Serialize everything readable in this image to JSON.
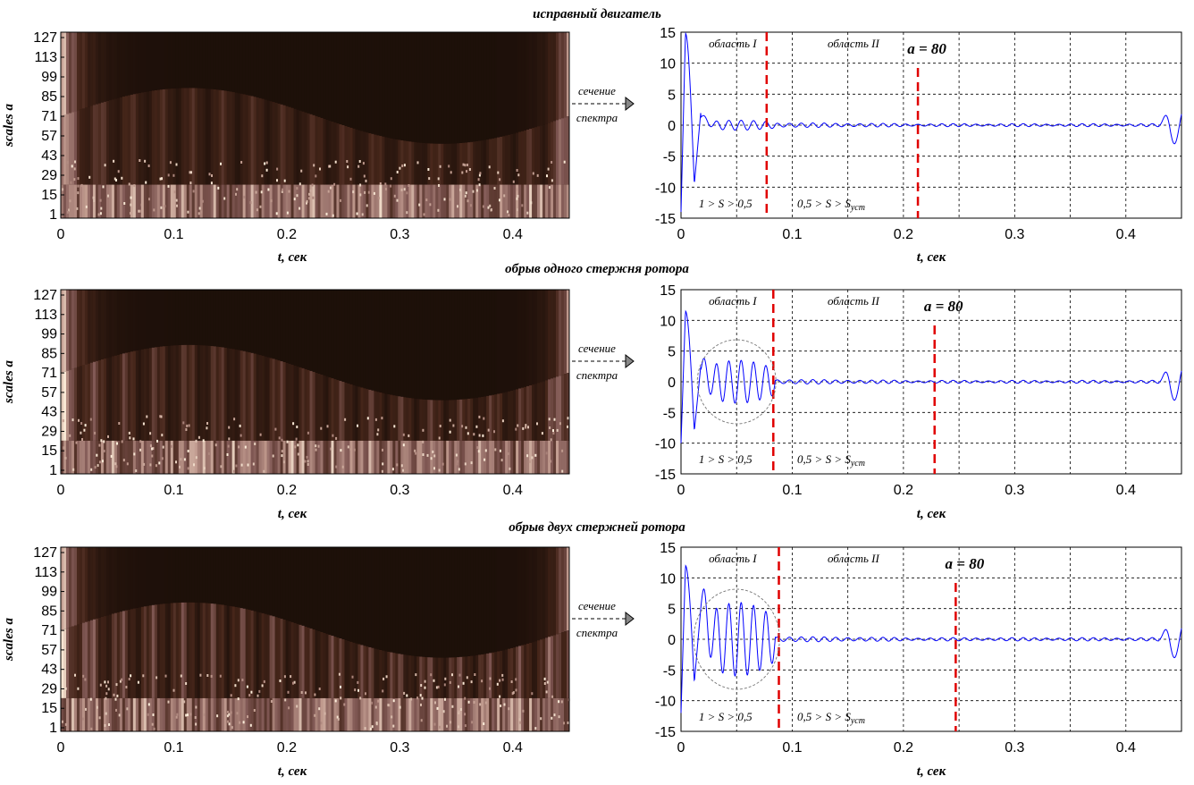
{
  "palette": {
    "line": "#0000ff",
    "marker": "#e00000",
    "grid": "#000000",
    "spec_dark": "#150b06",
    "spec_light": "#fff0dc"
  },
  "arrow_label": [
    "сечение",
    "спектра"
  ],
  "chart_data": [
    {
      "type": "heatmap+line",
      "title": "исправный двигатель",
      "spectrogram": {
        "xlabel": "t, сек",
        "ylabel": "scales a",
        "xlim": [
          0,
          0.45
        ],
        "ylim": [
          1,
          127
        ],
        "xticks": [
          "0",
          "0.1",
          "0.2",
          "0.3",
          "0.4"
        ],
        "yticks": [
          "1",
          "15",
          "29",
          "43",
          "57",
          "71",
          "85",
          "99",
          "113",
          "127"
        ]
      },
      "section": {
        "xlabel": "t, сек",
        "xlim": [
          0,
          0.45
        ],
        "ylim": [
          -15,
          15
        ],
        "xticks": [
          "0",
          "0.1",
          "0.2",
          "0.3",
          "0.4"
        ],
        "yticks": [
          "-15",
          "-10",
          "-5",
          "0",
          "5",
          "10",
          "15"
        ],
        "grid": true,
        "markers_x": [
          0.077,
          0.213
        ],
        "regions": [
          "область I",
          "область II"
        ],
        "scale_label": "a = 80",
        "slip_left": "1 > S > 0,5",
        "slip_right_prefix": "0,5 > S > S",
        "slip_right_sub": "уст",
        "ellipse": false,
        "peaks": [
          -14,
          14.8,
          -9.5,
          2.6,
          1.3
        ],
        "burst_amp": 0.8,
        "tail_amp": 0.35
      }
    },
    {
      "type": "heatmap+line",
      "title": "обрыв  одного стержня ротора",
      "spectrogram": {
        "xlabel": "t, сек",
        "ylabel": "scales a",
        "xlim": [
          0,
          0.45
        ],
        "ylim": [
          1,
          127
        ],
        "xticks": [
          "0",
          "0.1",
          "0.2",
          "0.3",
          "0.4"
        ],
        "yticks": [
          "1",
          "15",
          "29",
          "43",
          "57",
          "71",
          "85",
          "99",
          "113",
          "127"
        ]
      },
      "section": {
        "xlabel": "t, сек",
        "xlim": [
          0,
          0.45
        ],
        "ylim": [
          -15,
          15
        ],
        "xticks": [
          "0",
          "0.1",
          "0.2",
          "0.3",
          "0.4"
        ],
        "yticks": [
          "-15",
          "-10",
          "-5",
          "0",
          "5",
          "10",
          "15"
        ],
        "grid": true,
        "markers_x": [
          0.083,
          0.228
        ],
        "regions": [
          "область I",
          "область II"
        ],
        "scale_label": "a = 80",
        "slip_left": "1 > S > 0,5",
        "slip_right_prefix": "0,5 > S > S",
        "slip_right_sub": "уст",
        "ellipse": true,
        "peaks": [
          -10,
          11.5,
          -8,
          3,
          2
        ],
        "burst_amp": 3.5,
        "tail_amp": 0.35
      }
    },
    {
      "type": "heatmap+line",
      "title": "обрыв двух стержней ротора",
      "spectrogram": {
        "xlabel": "t, сек",
        "ylabel": "scales a",
        "xlim": [
          0,
          0.45
        ],
        "ylim": [
          1,
          127
        ],
        "xticks": [
          "0",
          "0.1",
          "0.2",
          "0.3",
          "0.4"
        ],
        "yticks": [
          "1",
          "15",
          "29",
          "43",
          "57",
          "71",
          "85",
          "99",
          "113",
          "127"
        ]
      },
      "section": {
        "xlabel": "t, сек",
        "xlim": [
          0,
          0.45
        ],
        "ylim": [
          -15,
          15
        ],
        "xticks": [
          "0",
          "0.1",
          "0.2",
          "0.3",
          "0.4"
        ],
        "yticks": [
          "-15",
          "-10",
          "-5",
          "0",
          "5",
          "10",
          "15"
        ],
        "grid": true,
        "markers_x": [
          0.088,
          0.247
        ],
        "regions": [
          "область I",
          "область II"
        ],
        "scale_label": "a = 80",
        "slip_left": "1 > S > 0,5",
        "slip_right_prefix": "0,5 > S > S",
        "slip_right_sub": "уст",
        "ellipse": true,
        "peaks": [
          -12,
          12,
          -7,
          5.5,
          5.5
        ],
        "burst_amp": 6,
        "tail_amp": 0.4
      }
    }
  ]
}
